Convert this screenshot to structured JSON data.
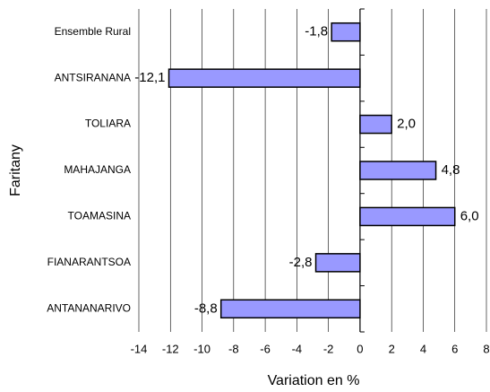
{
  "chart_data": {
    "type": "bar",
    "orientation": "horizontal",
    "xlabel": "Variation en %",
    "ylabel": "Faritany",
    "categories": [
      "Ensemble Rural",
      "ANTSIRANANA",
      "TOLIARA",
      "MAHAJANGA",
      "TOAMASINA",
      "FIANARANTSOA",
      "ANTANANARIVO"
    ],
    "values": [
      -1.8,
      -12.1,
      2.0,
      4.8,
      6.0,
      -2.8,
      -8.8
    ],
    "value_labels": [
      "-1,8",
      "-12,1",
      "2,0",
      "4,8",
      "6,0",
      "-2,8",
      "-8,8"
    ],
    "color": "#9999ff",
    "xlim": [
      -14,
      8
    ],
    "xticks": [
      -14,
      -12,
      -10,
      -8,
      -6,
      -4,
      -2,
      0,
      2,
      4,
      6,
      8
    ],
    "grid": true
  }
}
